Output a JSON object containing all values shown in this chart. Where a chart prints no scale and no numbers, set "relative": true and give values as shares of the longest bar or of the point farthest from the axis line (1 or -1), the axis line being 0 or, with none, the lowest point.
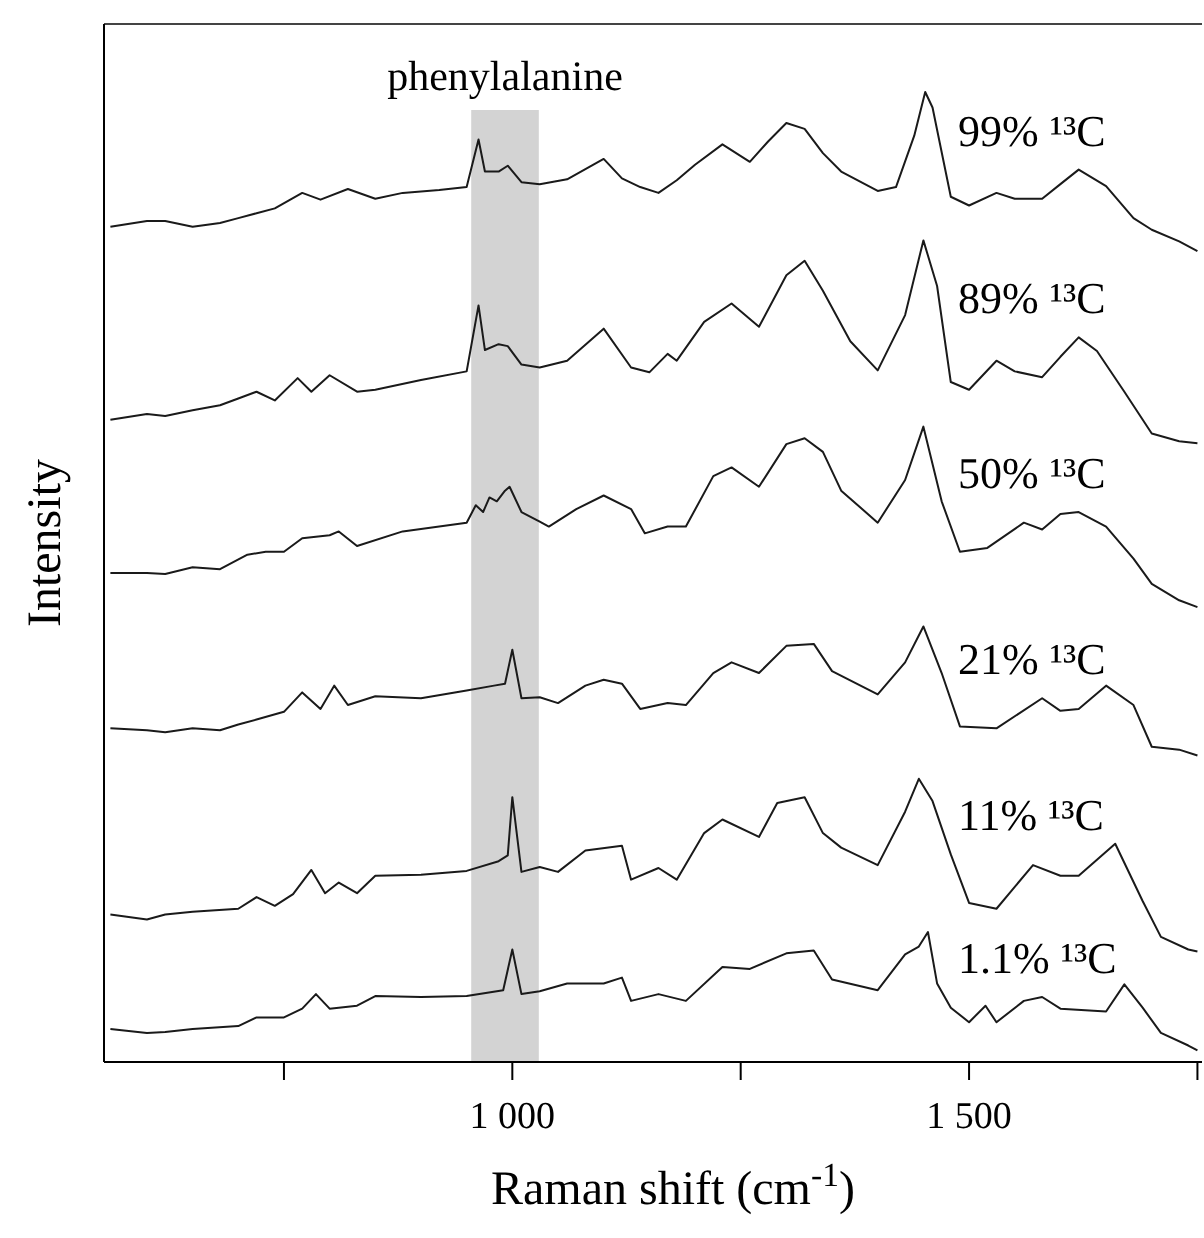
{
  "chart_data": {
    "type": "line",
    "relative": true,
    "xlabel": "Raman shift (cm$^{-1}$)",
    "ylabel": "Intensity",
    "xlim": [
      553,
      1755
    ],
    "xticks": [
      {
        "value": 750,
        "label": null
      },
      {
        "value": 1000,
        "label": "1 000"
      },
      {
        "value": 1250,
        "label": null
      },
      {
        "value": 1500,
        "label": "1 500"
      },
      {
        "value": 1750,
        "label": null
      }
    ],
    "bands": [
      {
        "axis": "x",
        "from": 955,
        "to": 1029,
        "label": "phenylalanine",
        "color": "#d3d3d3"
      }
    ],
    "series": [
      {
        "name": "99% ¹³C",
        "color": "#1a1a1a",
        "x": [
          560,
          600,
          620,
          650,
          680,
          700,
          720,
          740,
          770,
          790,
          820,
          850,
          880,
          920,
          950,
          963,
          970,
          985,
          995,
          1010,
          1030,
          1060,
          1100,
          1120,
          1140,
          1160,
          1180,
          1200,
          1230,
          1260,
          1280,
          1300,
          1320,
          1340,
          1360,
          1400,
          1420,
          1440,
          1452,
          1460,
          1480,
          1500,
          1530,
          1550,
          1580,
          1600,
          1620,
          1650,
          1680,
          1700,
          1730,
          1750
        ],
        "values": [
          0.861,
          0.867,
          0.867,
          0.861,
          0.865,
          0.87,
          0.875,
          0.88,
          0.896,
          0.889,
          0.9,
          0.89,
          0.896,
          0.899,
          0.902,
          0.951,
          0.918,
          0.918,
          0.924,
          0.907,
          0.905,
          0.91,
          0.931,
          0.911,
          0.902,
          0.896,
          0.909,
          0.925,
          0.946,
          0.928,
          0.949,
          0.968,
          0.962,
          0.937,
          0.918,
          0.898,
          0.902,
          0.955,
          1.0,
          0.984,
          0.892,
          0.883,
          0.896,
          0.89,
          0.89,
          0.905,
          0.92,
          0.903,
          0.87,
          0.858,
          0.846,
          0.836
        ]
      },
      {
        "name": "89% ¹³C",
        "color": "#1a1a1a",
        "x": [
          560,
          600,
          620,
          650,
          680,
          700,
          720,
          740,
          765,
          780,
          800,
          830,
          850,
          900,
          950,
          963,
          970,
          985,
          995,
          1010,
          1030,
          1060,
          1100,
          1130,
          1150,
          1170,
          1180,
          1210,
          1240,
          1270,
          1300,
          1320,
          1340,
          1370,
          1400,
          1430,
          1450,
          1465,
          1480,
          1500,
          1530,
          1550,
          1580,
          1600,
          1620,
          1640,
          1670,
          1700,
          1730,
          1750
        ],
        "values": [
          0.662,
          0.668,
          0.666,
          0.672,
          0.677,
          0.684,
          0.691,
          0.682,
          0.705,
          0.691,
          0.708,
          0.691,
          0.693,
          0.703,
          0.712,
          0.78,
          0.734,
          0.74,
          0.738,
          0.719,
          0.716,
          0.723,
          0.756,
          0.716,
          0.711,
          0.73,
          0.723,
          0.763,
          0.782,
          0.758,
          0.811,
          0.826,
          0.795,
          0.743,
          0.713,
          0.77,
          0.847,
          0.8,
          0.701,
          0.693,
          0.723,
          0.712,
          0.706,
          0.727,
          0.747,
          0.733,
          0.691,
          0.648,
          0.64,
          0.638
        ]
      },
      {
        "name": "50% ¹³C",
        "color": "#1a1a1a",
        "x": [
          560,
          600,
          620,
          650,
          680,
          710,
          730,
          750,
          770,
          800,
          810,
          830,
          880,
          950,
          960,
          968,
          975,
          983,
          992,
          997,
          1010,
          1030,
          1040,
          1070,
          1100,
          1130,
          1145,
          1170,
          1190,
          1220,
          1240,
          1270,
          1300,
          1320,
          1340,
          1360,
          1400,
          1430,
          1450,
          1470,
          1490,
          1520,
          1560,
          1580,
          1600,
          1620,
          1650,
          1680,
          1700,
          1730,
          1750
        ],
        "values": [
          0.504,
          0.504,
          0.503,
          0.51,
          0.508,
          0.523,
          0.526,
          0.526,
          0.54,
          0.543,
          0.547,
          0.532,
          0.547,
          0.556,
          0.574,
          0.567,
          0.582,
          0.578,
          0.589,
          0.593,
          0.567,
          0.557,
          0.552,
          0.57,
          0.584,
          0.57,
          0.545,
          0.552,
          0.552,
          0.604,
          0.613,
          0.593,
          0.637,
          0.643,
          0.629,
          0.589,
          0.556,
          0.6,
          0.655,
          0.578,
          0.526,
          0.53,
          0.556,
          0.549,
          0.565,
          0.567,
          0.552,
          0.519,
          0.493,
          0.476,
          0.469
        ]
      },
      {
        "name": "21% ¹³C",
        "color": "#1a1a1a",
        "x": [
          560,
          600,
          620,
          650,
          680,
          700,
          720,
          750,
          770,
          790,
          805,
          820,
          850,
          900,
          950,
          980,
          992,
          1000,
          1010,
          1030,
          1050,
          1080,
          1100,
          1120,
          1140,
          1170,
          1190,
          1220,
          1240,
          1270,
          1300,
          1330,
          1350,
          1400,
          1430,
          1450,
          1470,
          1490,
          1530,
          1580,
          1600,
          1620,
          1650,
          1680,
          1700,
          1730,
          1750
        ],
        "values": [
          0.344,
          0.342,
          0.34,
          0.344,
          0.342,
          0.348,
          0.353,
          0.361,
          0.381,
          0.364,
          0.388,
          0.368,
          0.377,
          0.375,
          0.383,
          0.388,
          0.39,
          0.425,
          0.375,
          0.376,
          0.37,
          0.388,
          0.394,
          0.39,
          0.364,
          0.37,
          0.368,
          0.401,
          0.412,
          0.401,
          0.429,
          0.431,
          0.403,
          0.379,
          0.412,
          0.449,
          0.401,
          0.346,
          0.344,
          0.375,
          0.362,
          0.364,
          0.388,
          0.368,
          0.325,
          0.322,
          0.316
        ]
      },
      {
        "name": "11% ¹³C",
        "color": "#1a1a1a",
        "x": [
          560,
          600,
          620,
          650,
          700,
          720,
          740,
          760,
          780,
          795,
          810,
          830,
          850,
          900,
          950,
          985,
          995,
          1000,
          1010,
          1030,
          1050,
          1080,
          1120,
          1130,
          1160,
          1180,
          1210,
          1230,
          1270,
          1290,
          1320,
          1340,
          1360,
          1400,
          1430,
          1445,
          1460,
          1480,
          1500,
          1530,
          1570,
          1600,
          1620,
          1660,
          1690,
          1710,
          1740,
          1750
        ],
        "values": [
          0.152,
          0.147,
          0.152,
          0.155,
          0.158,
          0.17,
          0.161,
          0.173,
          0.198,
          0.174,
          0.185,
          0.174,
          0.192,
          0.193,
          0.197,
          0.207,
          0.213,
          0.273,
          0.196,
          0.201,
          0.196,
          0.218,
          0.223,
          0.188,
          0.2,
          0.188,
          0.236,
          0.25,
          0.232,
          0.267,
          0.273,
          0.236,
          0.221,
          0.203,
          0.258,
          0.292,
          0.269,
          0.214,
          0.164,
          0.158,
          0.203,
          0.192,
          0.192,
          0.225,
          0.166,
          0.129,
          0.116,
          0.114
        ]
      },
      {
        "name": "1.1% ¹³C",
        "color": "#1a1a1a",
        "x": [
          560,
          600,
          620,
          650,
          700,
          720,
          750,
          770,
          785,
          800,
          830,
          850,
          900,
          950,
          990,
          1000,
          1010,
          1030,
          1060,
          1100,
          1120,
          1130,
          1160,
          1190,
          1230,
          1260,
          1300,
          1330,
          1350,
          1400,
          1430,
          1445,
          1455,
          1465,
          1480,
          1500,
          1518,
          1530,
          1560,
          1580,
          1600,
          1650,
          1670,
          1690,
          1710,
          1740,
          1750
        ],
        "values": [
          0.034,
          0.03,
          0.031,
          0.034,
          0.037,
          0.046,
          0.046,
          0.055,
          0.07,
          0.055,
          0.058,
          0.068,
          0.067,
          0.068,
          0.074,
          0.116,
          0.07,
          0.073,
          0.081,
          0.081,
          0.087,
          0.063,
          0.07,
          0.063,
          0.098,
          0.096,
          0.112,
          0.115,
          0.085,
          0.074,
          0.111,
          0.119,
          0.134,
          0.081,
          0.056,
          0.041,
          0.058,
          0.041,
          0.063,
          0.067,
          0.055,
          0.052,
          0.08,
          0.056,
          0.03,
          0.017,
          0.012
        ]
      }
    ]
  }
}
